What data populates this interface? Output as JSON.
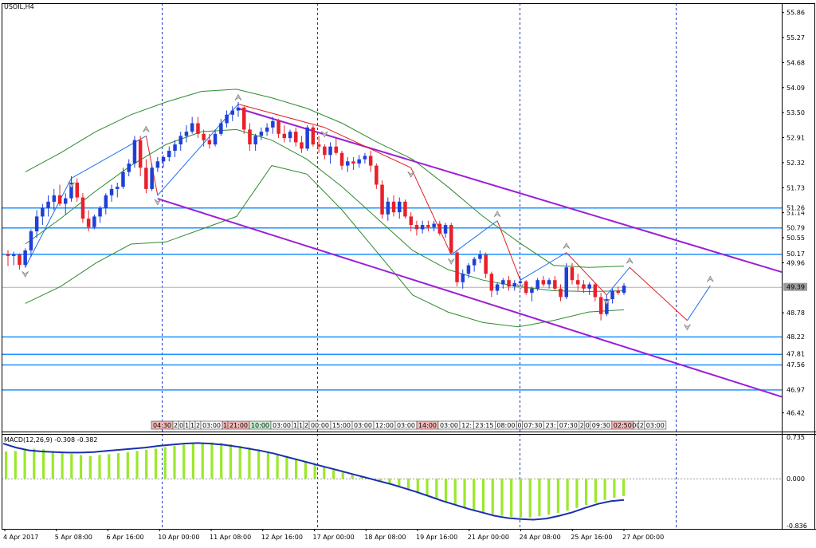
{
  "symbol_label": "USOIL,H4",
  "macd_label": "MACD(12,26,9) -0.308 -0.382",
  "colors": {
    "bull_candle": "#1f3fd9",
    "bear_candle": "#e8202a",
    "channel": "#9b1fd6",
    "level_line": "#1e90ff",
    "bollinger": "#2e8b2e",
    "macd_histogram": "#9be82a",
    "macd_signal": "#1a2fb0"
  },
  "price_axis": {
    "ticks": [
      "55.86",
      "55.27",
      "54.68",
      "54.09",
      "53.50",
      "52.91",
      "52.32",
      "51.73",
      "51.14",
      "50.55",
      "49.96",
      "48.78",
      "46.42"
    ],
    "level_tags": [
      "51.26",
      "50.79",
      "50.17",
      "48.22",
      "47.81",
      "47.56",
      "46.97"
    ],
    "current_price": "49.39"
  },
  "macd_axis": {
    "ticks": [
      "0.735",
      "0.000",
      "-0.836"
    ]
  },
  "time_axis": {
    "ticks": [
      "4 Apr 2017",
      "5 Apr 08:00",
      "6 Apr 16:00",
      "10 Apr 00:00",
      "11 Apr 08:00",
      "12 Apr 16:00",
      "17 Apr 00:00",
      "18 Apr 08:00",
      "19 Apr 16:00",
      "21 Apr 00:00",
      "24 Apr 08:00",
      "25 Apr 16:00",
      "27 Apr 00:00"
    ]
  },
  "session_strip": [
    {
      "text": "04:30",
      "color": "#f5b7b7"
    },
    {
      "text": "2",
      "color": "#ffffff"
    },
    {
      "text": "0",
      "color": "#ffffff"
    },
    {
      "text": "1",
      "color": "#ffffff"
    },
    {
      "text": "1",
      "color": "#ffffff"
    },
    {
      "text": "2",
      "color": "#ffffff"
    },
    {
      "text": "03:00",
      "color": "#ffffff"
    },
    {
      "text": "1",
      "color": "#f5b7b7"
    },
    {
      "text": "21:00",
      "color": "#f5b7b7"
    },
    {
      "text": "10:00",
      "color": "#c8f0d0"
    },
    {
      "text": "03:00",
      "color": "#ffffff"
    },
    {
      "text": "1",
      "color": "#ffffff"
    },
    {
      "text": "1",
      "color": "#ffffff"
    },
    {
      "text": "2",
      "color": "#ffffff"
    },
    {
      "text": "00:00",
      "color": "#ffffff"
    },
    {
      "text": "15:00",
      "color": "#ffffff"
    },
    {
      "text": "03:00",
      "color": "#ffffff"
    },
    {
      "text": "12:00",
      "color": "#ffffff"
    },
    {
      "text": "03:00",
      "color": "#ffffff"
    },
    {
      "text": "14:00",
      "color": "#f5b7b7"
    },
    {
      "text": "03:00",
      "color": "#ffffff"
    },
    {
      "text": "12:",
      "color": "#ffffff"
    },
    {
      "text": "23:15",
      "color": "#ffffff"
    },
    {
      "text": "08:00",
      "color": "#ffffff"
    },
    {
      "text": "0",
      "color": "#ffffff"
    },
    {
      "text": "07:30",
      "color": "#ffffff"
    },
    {
      "text": "23:",
      "color": "#ffffff"
    },
    {
      "text": "07:30",
      "color": "#ffffff"
    },
    {
      "text": "2",
      "color": "#ffffff"
    },
    {
      "text": "0",
      "color": "#ffffff"
    },
    {
      "text": "09:30",
      "color": "#ffffff"
    },
    {
      "text": "02:50",
      "color": "#f5b7b7"
    },
    {
      "text": "00",
      "color": "#ffffff"
    },
    {
      "text": "2",
      "color": "#ffffff"
    },
    {
      "text": "03:00",
      "color": "#ffffff"
    }
  ],
  "chart_data": [
    {
      "type": "candlestick",
      "title": "USOIL,H4",
      "ylim": [
        45.98,
        56.08
      ],
      "grid": false,
      "horizontal_levels": [
        51.26,
        50.79,
        50.17,
        48.22,
        47.81,
        47.56,
        46.97
      ],
      "current_price": 49.39,
      "channel_upper": {
        "from": [
          0,
          53.6
        ],
        "to": [
          "end",
          49.74
        ]
      },
      "channel_lower": {
        "from": [
          0,
          51.47
        ],
        "to": [
          "end",
          46.8
        ]
      },
      "ohlc": [
        [
          50.16,
          50.26,
          49.88,
          50.12
        ],
        [
          50.12,
          50.22,
          49.9,
          50.15
        ],
        [
          50.15,
          50.18,
          49.8,
          49.91
        ],
        [
          49.91,
          50.3,
          49.85,
          50.25
        ],
        [
          50.25,
          50.75,
          50.1,
          50.7
        ],
        [
          50.7,
          51.2,
          50.55,
          51.05
        ],
        [
          51.05,
          51.35,
          50.85,
          51.25
        ],
        [
          51.25,
          51.55,
          51.05,
          51.4
        ],
        [
          51.4,
          51.7,
          51.2,
          51.55
        ],
        [
          51.55,
          51.8,
          51.3,
          51.35
        ],
        [
          51.35,
          51.6,
          51.1,
          51.48
        ],
        [
          51.48,
          52.0,
          51.4,
          51.85
        ],
        [
          51.85,
          51.95,
          51.4,
          51.5
        ],
        [
          51.5,
          51.6,
          50.9,
          51.0
        ],
        [
          51.0,
          51.2,
          50.7,
          50.8
        ],
        [
          50.8,
          51.1,
          50.75,
          51.05
        ],
        [
          51.05,
          51.3,
          50.9,
          51.25
        ],
        [
          51.25,
          51.6,
          51.1,
          51.55
        ],
        [
          51.55,
          51.8,
          51.4,
          51.7
        ],
        [
          51.7,
          51.85,
          51.5,
          51.75
        ],
        [
          51.75,
          52.2,
          51.7,
          52.1
        ],
        [
          52.1,
          52.4,
          52.0,
          52.3
        ],
        [
          52.3,
          52.95,
          52.2,
          52.85
        ],
        [
          52.85,
          52.95,
          52.0,
          52.2
        ],
        [
          52.2,
          52.4,
          51.6,
          51.7
        ],
        [
          51.7,
          52.3,
          51.65,
          52.2
        ],
        [
          52.2,
          52.45,
          52.1,
          52.35
        ],
        [
          52.35,
          52.5,
          52.2,
          52.45
        ],
        [
          52.45,
          52.7,
          52.35,
          52.6
        ],
        [
          52.6,
          52.85,
          52.45,
          52.75
        ],
        [
          52.75,
          53.05,
          52.6,
          52.95
        ],
        [
          52.95,
          53.2,
          52.8,
          53.05
        ],
        [
          53.05,
          53.4,
          53.0,
          53.25
        ],
        [
          53.25,
          53.4,
          52.9,
          53.0
        ],
        [
          53.0,
          53.1,
          52.7,
          52.85
        ],
        [
          52.85,
          53.0,
          52.65,
          52.75
        ],
        [
          52.75,
          53.1,
          52.7,
          53.0
        ],
        [
          53.0,
          53.35,
          52.95,
          53.25
        ],
        [
          53.25,
          53.55,
          53.15,
          53.45
        ],
        [
          53.45,
          53.65,
          53.3,
          53.55
        ],
        [
          53.55,
          53.75,
          53.4,
          53.62
        ],
        [
          53.62,
          53.65,
          53.0,
          53.1
        ],
        [
          53.1,
          53.25,
          52.6,
          52.75
        ],
        [
          52.75,
          53.0,
          52.6,
          52.95
        ],
        [
          52.95,
          53.15,
          52.85,
          53.05
        ],
        [
          53.05,
          53.25,
          52.95,
          53.15
        ],
        [
          53.15,
          53.4,
          53.0,
          53.3
        ],
        [
          53.3,
          53.35,
          52.9,
          53.0
        ],
        [
          53.0,
          53.2,
          52.8,
          52.9
        ],
        [
          52.9,
          53.1,
          52.8,
          53.05
        ],
        [
          53.05,
          53.15,
          52.7,
          52.8
        ],
        [
          52.8,
          52.95,
          52.55,
          52.65
        ],
        [
          52.65,
          53.2,
          52.6,
          53.15
        ],
        [
          53.15,
          53.2,
          52.7,
          52.75
        ],
        [
          52.75,
          52.95,
          52.55,
          52.7
        ],
        [
          52.7,
          52.75,
          52.4,
          52.5
        ],
        [
          52.5,
          52.8,
          52.3,
          52.7
        ],
        [
          52.7,
          52.9,
          52.5,
          52.55
        ],
        [
          52.55,
          52.6,
          52.15,
          52.25
        ],
        [
          52.25,
          52.45,
          52.1,
          52.35
        ],
        [
          52.35,
          52.45,
          52.15,
          52.3
        ],
        [
          52.3,
          52.5,
          52.2,
          52.4
        ],
        [
          52.4,
          52.55,
          52.3,
          52.48
        ],
        [
          52.48,
          52.6,
          52.1,
          52.25
        ],
        [
          52.25,
          52.3,
          51.7,
          51.8
        ],
        [
          51.8,
          51.9,
          51.0,
          51.1
        ],
        [
          51.1,
          51.5,
          50.95,
          51.4
        ],
        [
          51.4,
          51.55,
          51.05,
          51.15
        ],
        [
          51.15,
          51.5,
          51.0,
          51.4
        ],
        [
          51.4,
          51.45,
          51.0,
          51.05
        ],
        [
          51.05,
          51.15,
          50.7,
          50.85
        ],
        [
          50.85,
          50.95,
          50.6,
          50.75
        ],
        [
          50.75,
          50.95,
          50.65,
          50.85
        ],
        [
          50.85,
          50.95,
          50.7,
          50.8
        ],
        [
          50.8,
          50.95,
          50.7,
          50.88
        ],
        [
          50.88,
          50.95,
          50.6,
          50.65
        ],
        [
          50.65,
          50.9,
          50.55,
          50.85
        ],
        [
          50.85,
          50.9,
          50.15,
          50.2
        ],
        [
          50.2,
          50.25,
          49.4,
          49.5
        ],
        [
          49.5,
          49.8,
          49.35,
          49.7
        ],
        [
          49.7,
          49.95,
          49.6,
          49.9
        ],
        [
          49.9,
          50.1,
          49.75,
          50.05
        ],
        [
          50.05,
          50.25,
          49.95,
          50.15
        ],
        [
          50.15,
          50.2,
          49.6,
          49.7
        ],
        [
          49.7,
          49.75,
          49.15,
          49.3
        ],
        [
          49.3,
          49.5,
          49.2,
          49.45
        ],
        [
          49.45,
          49.6,
          49.35,
          49.55
        ],
        [
          49.55,
          49.65,
          49.3,
          49.4
        ],
        [
          49.4,
          49.55,
          49.3,
          49.48
        ],
        [
          49.48,
          49.6,
          49.4,
          49.52
        ],
        [
          49.52,
          49.55,
          49.2,
          49.25
        ],
        [
          49.25,
          49.4,
          49.05,
          49.35
        ],
        [
          49.35,
          49.6,
          49.3,
          49.55
        ],
        [
          49.55,
          49.65,
          49.4,
          49.45
        ],
        [
          49.45,
          49.6,
          49.35,
          49.55
        ],
        [
          49.55,
          49.65,
          49.3,
          49.35
        ],
        [
          49.35,
          49.45,
          49.05,
          49.15
        ],
        [
          49.15,
          49.95,
          49.1,
          49.85
        ],
        [
          49.85,
          49.95,
          49.45,
          49.55
        ],
        [
          49.55,
          49.7,
          49.3,
          49.45
        ],
        [
          49.45,
          49.55,
          49.25,
          49.35
        ],
        [
          49.35,
          49.5,
          49.2,
          49.45
        ],
        [
          49.45,
          49.5,
          49.05,
          49.15
        ],
        [
          49.15,
          49.25,
          48.6,
          48.75
        ],
        [
          48.75,
          49.2,
          48.7,
          49.1
        ],
        [
          49.1,
          49.35,
          49.0,
          49.3
        ],
        [
          49.3,
          49.4,
          49.2,
          49.25
        ],
        [
          49.25,
          49.48,
          49.2,
          49.42
        ]
      ],
      "bollinger": {
        "upper": [
          52.1,
          52.55,
          53.05,
          53.45,
          53.75,
          54.0,
          54.05,
          53.85,
          53.6,
          53.25,
          52.8,
          52.4,
          51.75,
          51.05,
          50.45,
          49.9,
          49.85,
          49.88
        ],
        "middle": [
          50.4,
          51.0,
          51.65,
          52.25,
          52.75,
          53.05,
          53.1,
          52.85,
          52.4,
          51.75,
          51.0,
          50.25,
          49.8,
          49.55,
          49.4,
          49.3,
          49.28,
          49.3
        ],
        "lower": [
          49.0,
          49.4,
          49.95,
          50.4,
          50.45,
          50.75,
          51.05,
          52.25,
          52.05,
          51.2,
          50.2,
          49.2,
          48.8,
          48.55,
          48.45,
          48.6,
          48.8,
          48.85
        ]
      },
      "zigzag_points": [
        [
          3,
          49.85
        ],
        [
          11,
          51.95
        ],
        [
          24,
          52.95
        ],
        [
          26,
          51.55
        ],
        [
          40,
          53.7
        ],
        [
          55,
          53.15
        ],
        [
          70,
          52.2
        ],
        [
          77,
          50.15
        ],
        [
          85,
          50.95
        ],
        [
          89,
          49.55
        ],
        [
          97,
          50.2
        ],
        [
          104,
          49.2
        ],
        [
          108,
          49.85
        ],
        [
          118,
          48.6
        ],
        [
          122,
          49.42
        ]
      ]
    },
    {
      "type": "bar",
      "title": "MACD(12,26,9) -0.308 -0.382",
      "ylim": [
        -0.836,
        0.735
      ],
      "series": [
        {
          "name": "MACD",
          "values": [
            0.48,
            0.49,
            0.51,
            0.53,
            0.52,
            0.49,
            0.47,
            0.44,
            0.42,
            0.4,
            0.42,
            0.43,
            0.45,
            0.47,
            0.49,
            0.51,
            0.53,
            0.56,
            0.58,
            0.6,
            0.62,
            0.63,
            0.64,
            0.63,
            0.61,
            0.58,
            0.55,
            0.52,
            0.48,
            0.44,
            0.4,
            0.35,
            0.3,
            0.25,
            0.2,
            0.15,
            0.11,
            0.07,
            0.03,
            -0.01,
            -0.05,
            -0.1,
            -0.15,
            -0.2,
            -0.26,
            -0.31,
            -0.36,
            -0.42,
            -0.47,
            -0.52,
            -0.56,
            -0.6,
            -0.63,
            -0.66,
            -0.68,
            -0.69,
            -0.69,
            -0.67,
            -0.64,
            -0.61,
            -0.57,
            -0.52,
            -0.47,
            -0.43,
            -0.38,
            -0.34,
            -0.31
          ]
        },
        {
          "name": "Signal",
          "values": [
            0.62,
            0.55,
            0.5,
            0.48,
            0.47,
            0.46,
            0.46,
            0.47,
            0.49,
            0.51,
            0.53,
            0.55,
            0.58,
            0.6,
            0.62,
            0.63,
            0.62,
            0.6,
            0.57,
            0.53,
            0.49,
            0.44,
            0.38,
            0.32,
            0.26,
            0.2,
            0.14,
            0.08,
            0.02,
            -0.04,
            -0.1,
            -0.17,
            -0.24,
            -0.32,
            -0.4,
            -0.47,
            -0.54,
            -0.6,
            -0.66,
            -0.7,
            -0.72,
            -0.73,
            -0.71,
            -0.66,
            -0.6,
            -0.52,
            -0.45,
            -0.4,
            -0.38
          ]
        }
      ]
    }
  ]
}
